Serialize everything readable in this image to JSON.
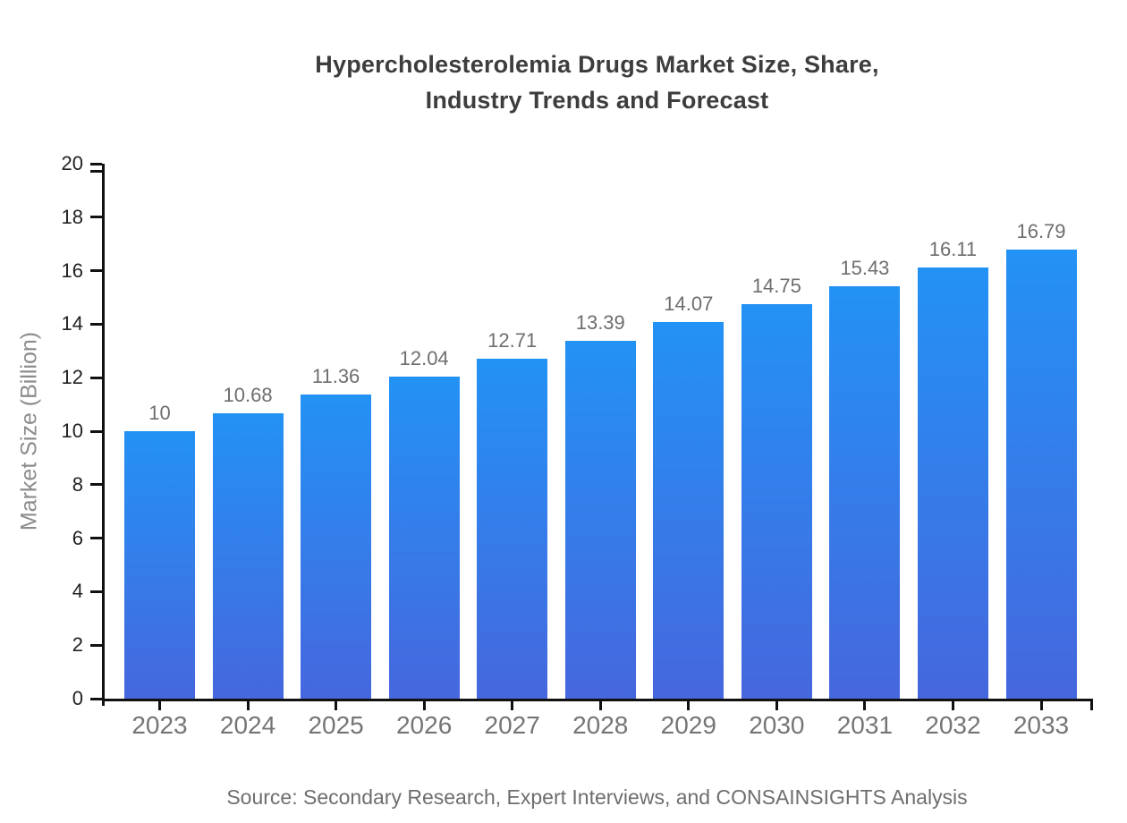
{
  "title": {
    "line1": "Hypercholesterolemia Drugs Market Size, Share,",
    "line2": "Industry Trends and Forecast"
  },
  "source_note": "Source: Secondary Research, Expert Interviews, and CONSAINSIGHTS Analysis",
  "colors": {
    "bar_gradient_top": "#2392F5",
    "bar_gradient_bottom": "#4667DE",
    "axis": "#111111",
    "title_text": "#3d3d3d",
    "x_label_text": "#757575",
    "y_label_text": "#222222",
    "value_label_text": "#6e6e6e",
    "source_text": "#6e6e6e",
    "background": "#ffffff"
  },
  "chart_data": {
    "type": "bar",
    "title": "Hypercholesterolemia Drugs Market Size, Share, Industry Trends and Forecast",
    "categories": [
      "2023",
      "2024",
      "2025",
      "2026",
      "2027",
      "2028",
      "2029",
      "2030",
      "2031",
      "2032",
      "2033"
    ],
    "values": [
      10,
      10.68,
      11.36,
      12.04,
      12.71,
      13.39,
      14.07,
      14.75,
      15.43,
      16.11,
      16.79
    ],
    "value_labels": [
      "10",
      "10.68",
      "11.36",
      "12.04",
      "12.71",
      "13.39",
      "14.07",
      "14.75",
      "15.43",
      "16.11",
      "16.79"
    ],
    "xlabel": "",
    "ylabel": "Market Size (Billion)",
    "ylim": [
      0,
      20
    ],
    "y_ticks": [
      0,
      2,
      4,
      6,
      8,
      10,
      12,
      14,
      16,
      18,
      20
    ],
    "grid": false,
    "legend_position": "none",
    "bar_color_top": "#2392F5",
    "bar_color_bottom": "#4667DE"
  }
}
